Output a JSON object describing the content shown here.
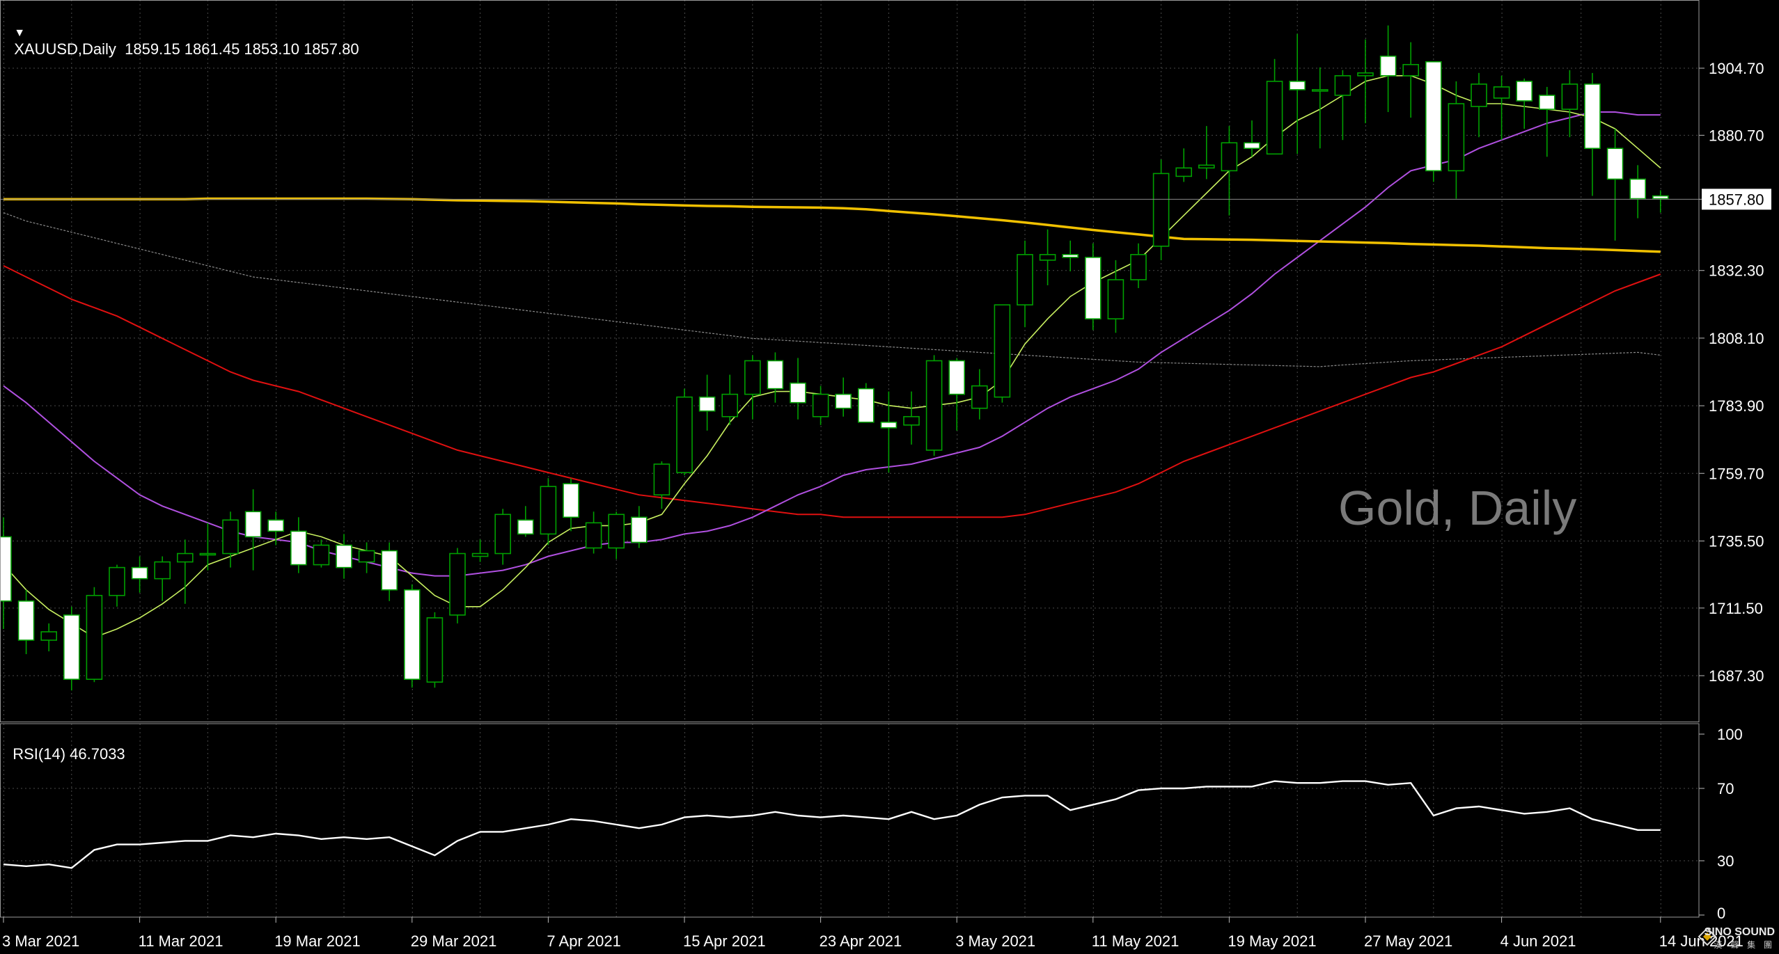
{
  "header": {
    "symbol_line": "XAUUSD,Daily  1859.15 1861.45 1853.10 1857.80"
  },
  "watermark": "Gold, Daily",
  "logo": {
    "name": "SINO SOUND",
    "sub": "漢 聲 集 團"
  },
  "colors": {
    "background": "#000000",
    "grid": "#4a4a4a",
    "bull_candle": "#00a000",
    "bear_candle_fill": "#ffffff",
    "ma_fast": "#c8f060",
    "ma_mid": "#b050e0",
    "ma_red": "#e01010",
    "ma_yellow": "#f0c000",
    "ma_gray": "#8c8c8c",
    "rsi_line": "#ffffff"
  },
  "chart_data": [
    {
      "type": "candlestick",
      "title": "XAUUSD,Daily",
      "last_price": 1857.8,
      "y_ticks": [
        1904.7,
        1880.7,
        1857.8,
        1832.3,
        1808.1,
        1783.9,
        1759.7,
        1735.5,
        1711.5,
        1687.3
      ],
      "ylim": [
        1680.0,
        1926.0
      ],
      "x_ticks": [
        "3 Mar 2021",
        "11 Mar 2021",
        "19 Mar 2021",
        "29 Mar 2021",
        "7 Apr 2021",
        "15 Apr 2021",
        "23 Apr 2021",
        "3 May 2021",
        "11 May 2021",
        "19 May 2021",
        "27 May 2021",
        "4 Jun 2021",
        "14 Jun 2021"
      ],
      "x_tick_index": [
        0,
        6,
        12,
        18,
        24,
        30,
        36,
        42,
        48,
        54,
        60,
        66,
        73
      ],
      "ohlc": [
        [
          1737,
          1744,
          1704,
          1714
        ],
        [
          1714,
          1718,
          1695,
          1700
        ],
        [
          1700,
          1706,
          1696,
          1703
        ],
        [
          1709,
          1712,
          1682,
          1686
        ],
        [
          1686,
          1719,
          1685,
          1716
        ],
        [
          1716,
          1727,
          1712,
          1726
        ],
        [
          1726,
          1730,
          1717,
          1722
        ],
        [
          1722,
          1730,
          1714,
          1728
        ],
        [
          1728,
          1736,
          1713,
          1731
        ],
        [
          1731,
          1742,
          1725,
          1731
        ],
        [
          1731,
          1746,
          1726,
          1743
        ],
        [
          1746,
          1754,
          1725,
          1737
        ],
        [
          1743,
          1746,
          1734,
          1739
        ],
        [
          1739,
          1744,
          1724,
          1727
        ],
        [
          1727,
          1736,
          1726,
          1734
        ],
        [
          1734,
          1738,
          1722,
          1726
        ],
        [
          1728,
          1735,
          1724,
          1732
        ],
        [
          1732,
          1735,
          1714,
          1718
        ],
        [
          1718,
          1720,
          1683,
          1686
        ],
        [
          1685,
          1710,
          1683,
          1708
        ],
        [
          1709,
          1733,
          1706,
          1731
        ],
        [
          1730,
          1736,
          1728,
          1731
        ],
        [
          1731,
          1747,
          1727,
          1745
        ],
        [
          1743,
          1748,
          1737,
          1738
        ],
        [
          1738,
          1758,
          1734,
          1755
        ],
        [
          1756,
          1758,
          1739,
          1744
        ],
        [
          1733,
          1746,
          1731,
          1742
        ],
        [
          1733,
          1746,
          1729,
          1745
        ],
        [
          1744,
          1748,
          1733,
          1735
        ],
        [
          1752,
          1764,
          1747,
          1763
        ],
        [
          1760,
          1790,
          1759,
          1787
        ],
        [
          1787,
          1795,
          1775,
          1782
        ],
        [
          1780,
          1795,
          1777,
          1788
        ],
        [
          1788,
          1802,
          1779,
          1800
        ],
        [
          1800,
          1803,
          1785,
          1790
        ],
        [
          1792,
          1801,
          1779,
          1785
        ],
        [
          1780,
          1791,
          1777,
          1788
        ],
        [
          1788,
          1794,
          1780,
          1783
        ],
        [
          1790,
          1792,
          1779,
          1778
        ],
        [
          1778,
          1789,
          1760,
          1776
        ],
        [
          1777,
          1789,
          1770,
          1780
        ],
        [
          1768,
          1802,
          1766,
          1800
        ],
        [
          1800,
          1801,
          1775,
          1788
        ],
        [
          1783,
          1797,
          1779,
          1791
        ],
        [
          1787,
          1819,
          1785,
          1820
        ],
        [
          1820,
          1843,
          1812,
          1838
        ],
        [
          1836,
          1847,
          1827,
          1838
        ],
        [
          1838,
          1843,
          1832,
          1837
        ],
        [
          1837,
          1842,
          1811,
          1815
        ],
        [
          1815,
          1836,
          1810,
          1829
        ],
        [
          1829,
          1842,
          1826,
          1838
        ],
        [
          1841,
          1872,
          1836,
          1867
        ],
        [
          1866,
          1876,
          1864,
          1869
        ],
        [
          1869,
          1884,
          1865,
          1870
        ],
        [
          1868,
          1884,
          1852,
          1878
        ],
        [
          1878,
          1886,
          1873,
          1876
        ],
        [
          1874,
          1908,
          1874,
          1900
        ],
        [
          1900,
          1917,
          1874,
          1897
        ],
        [
          1897,
          1905,
          1876,
          1897
        ],
        [
          1895,
          1904,
          1879,
          1902
        ],
        [
          1902,
          1915,
          1885,
          1903
        ],
        [
          1909,
          1920,
          1889,
          1902
        ],
        [
          1902,
          1914,
          1887,
          1906
        ],
        [
          1907,
          1907,
          1864,
          1868
        ],
        [
          1868,
          1900,
          1858,
          1892
        ],
        [
          1891,
          1903,
          1880,
          1899
        ],
        [
          1894,
          1902,
          1879,
          1898
        ],
        [
          1900,
          1901,
          1883,
          1893
        ],
        [
          1895,
          1898,
          1873,
          1890
        ],
        [
          1890,
          1904,
          1880,
          1899
        ],
        [
          1899,
          1903,
          1859,
          1876
        ],
        [
          1876,
          1883,
          1843,
          1865
        ],
        [
          1865,
          1870,
          1851,
          1858
        ],
        [
          1859,
          1861,
          1853,
          1858
        ]
      ],
      "ma_fast": [
        1727,
        1718,
        1711,
        1706,
        1701,
        1704,
        1708,
        1713,
        1719,
        1727,
        1730,
        1733,
        1736,
        1739,
        1737,
        1734,
        1732,
        1730,
        1723,
        1716,
        1712,
        1712,
        1718,
        1726,
        1735,
        1740,
        1741,
        1741,
        1742,
        1745,
        1756,
        1766,
        1778,
        1787,
        1789,
        1789,
        1788,
        1787,
        1786,
        1784,
        1783,
        1784,
        1785,
        1787,
        1793,
        1806,
        1815,
        1823,
        1828,
        1832,
        1836,
        1844,
        1852,
        1860,
        1868,
        1873,
        1880,
        1886,
        1890,
        1895,
        1900,
        1902,
        1902,
        1899,
        1895,
        1892,
        1892,
        1891,
        1890,
        1889,
        1887,
        1883,
        1876,
        1869
      ],
      "ma_mid": [
        1791,
        1785,
        1778,
        1771,
        1764,
        1758,
        1752,
        1748,
        1745,
        1742,
        1739,
        1737,
        1736,
        1735,
        1732,
        1730,
        1728,
        1726,
        1724,
        1723,
        1723,
        1724,
        1725,
        1727,
        1730,
        1732,
        1734,
        1735,
        1735,
        1736,
        1738,
        1739,
        1741,
        1744,
        1748,
        1752,
        1755,
        1759,
        1761,
        1762,
        1763,
        1765,
        1767,
        1769,
        1773,
        1778,
        1783,
        1787,
        1790,
        1793,
        1797,
        1803,
        1808,
        1813,
        1818,
        1824,
        1831,
        1837,
        1843,
        1849,
        1855,
        1862,
        1868,
        1870,
        1872,
        1876,
        1879,
        1882,
        1885,
        1887,
        1889,
        1889,
        1888,
        1888
      ],
      "ma_red": [
        1834,
        1830,
        1826,
        1822,
        1819,
        1816,
        1812,
        1808,
        1804,
        1800,
        1796,
        1793,
        1791,
        1789,
        1786,
        1783,
        1780,
        1777,
        1774,
        1771,
        1768,
        1766,
        1764,
        1762,
        1760,
        1758,
        1756,
        1754,
        1752,
        1751,
        1750,
        1749,
        1748,
        1747,
        1746,
        1745,
        1745,
        1744,
        1744,
        1744,
        1744,
        1744,
        1744,
        1744,
        1744,
        1745,
        1747,
        1749,
        1751,
        1753,
        1756,
        1760,
        1764,
        1767,
        1770,
        1773,
        1776,
        1779,
        1782,
        1785,
        1788,
        1791,
        1794,
        1796,
        1799,
        1802,
        1805,
        1809,
        1813,
        1817,
        1821,
        1825,
        1828,
        1831
      ],
      "ma_yellow": [
        1857.8,
        1857.8,
        1857.8,
        1857.8,
        1857.8,
        1857.8,
        1857.8,
        1857.8,
        1857.8,
        1858.0,
        1858.0,
        1858.0,
        1858.0,
        1858.0,
        1858.0,
        1858.0,
        1858.0,
        1857.9,
        1857.8,
        1857.6,
        1857.4,
        1857.3,
        1857.2,
        1857.1,
        1856.9,
        1856.7,
        1856.5,
        1856.3,
        1856.0,
        1855.8,
        1855.6,
        1855.4,
        1855.3,
        1855.1,
        1855.0,
        1854.9,
        1854.8,
        1854.6,
        1854.2,
        1853.6,
        1853.0,
        1852.4,
        1851.7,
        1851.0,
        1850.3,
        1849.5,
        1848.6,
        1847.7,
        1846.8,
        1846.0,
        1845.2,
        1844.4,
        1843.6,
        1843.5,
        1843.4,
        1843.3,
        1843.1,
        1842.9,
        1842.7,
        1842.5,
        1842.3,
        1842.1,
        1841.8,
        1841.6,
        1841.4,
        1841.2,
        1840.9,
        1840.6,
        1840.3,
        1840.1,
        1839.9,
        1839.6,
        1839.3,
        1839.0
      ],
      "ma_gray": [
        1853,
        1850,
        1848,
        1846,
        1844,
        1842,
        1840,
        1838,
        1836,
        1834,
        1832,
        1830,
        1829,
        1828,
        1827,
        1826,
        1825,
        1824,
        1823,
        1822,
        1821,
        1820,
        1819,
        1818,
        1817,
        1816,
        1815,
        1814,
        1813,
        1812,
        1811,
        1810,
        1809,
        1808,
        1807.5,
        1807,
        1806.5,
        1806,
        1805.5,
        1805,
        1804.5,
        1804,
        1803.5,
        1803,
        1802.5,
        1802,
        1801.5,
        1801,
        1800.5,
        1800,
        1799.5,
        1799.3,
        1799.1,
        1798.9,
        1798.7,
        1798.5,
        1798.3,
        1798.1,
        1797.9,
        1798.5,
        1799,
        1799.5,
        1800,
        1800.3,
        1800.6,
        1800.9,
        1801.2,
        1801.5,
        1801.8,
        1802.1,
        1802.4,
        1802.7,
        1803.0,
        1802.0
      ]
    },
    {
      "type": "line",
      "title": "RSI(14) 46.7033",
      "ylim": [
        0,
        100
      ],
      "y_ticks": [
        100,
        70,
        30,
        0
      ],
      "values": [
        28,
        27,
        28,
        26,
        36,
        39,
        39,
        40,
        41,
        41,
        44,
        43,
        45,
        44,
        42,
        43,
        42,
        43,
        38,
        33,
        41,
        46,
        46,
        48,
        50,
        53,
        52,
        50,
        48,
        50,
        54,
        55,
        54,
        55,
        57,
        55,
        54,
        55,
        54,
        53,
        57,
        53,
        55,
        61,
        65,
        66,
        66,
        58,
        61,
        64,
        69,
        70,
        70,
        71,
        71,
        71,
        74,
        73,
        73,
        74,
        74,
        72,
        73,
        55,
        59,
        60,
        58,
        56,
        57,
        59,
        53,
        50,
        47,
        47
      ]
    }
  ]
}
